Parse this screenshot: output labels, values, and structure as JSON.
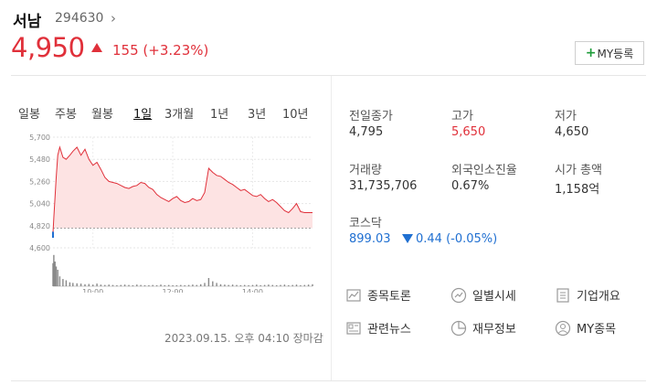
{
  "stock": {
    "name": "서남",
    "code": "294630",
    "price": "4,950",
    "change_amount": "155",
    "change_percent": "(+3.23%)",
    "my_button": "MY등록",
    "up_color": "#e0303a",
    "down_color": "#1f6fd1"
  },
  "periods": [
    "일봉",
    "주봉",
    "월봉",
    "1일",
    "3개월",
    "1년",
    "3년",
    "10년"
  ],
  "active_period": "1일",
  "timestamp": "2023.09.15. 오후 04:10 장마감",
  "stats": {
    "prev_close_label": "전일종가",
    "prev_close": "4,795",
    "high_label": "고가",
    "high": "5,650",
    "low_label": "저가",
    "low": "4,650",
    "volume_label": "거래량",
    "volume": "31,735,706",
    "foreign_label": "외국인소진율",
    "foreign": "0.67%",
    "mcap_label": "시가 총액",
    "mcap": "1,158억",
    "index_label": "코스닥",
    "index_value": "899.03",
    "index_change": "0.44 (-0.05%)"
  },
  "links": [
    {
      "label": "종목토론",
      "icon": "chart-board-icon"
    },
    {
      "label": "일별시세",
      "icon": "trend-icon"
    },
    {
      "label": "기업개요",
      "icon": "document-icon"
    },
    {
      "label": "관련뉴스",
      "icon": "news-icon"
    },
    {
      "label": "재무정보",
      "icon": "pie-chart-icon"
    },
    {
      "label": "MY종목",
      "icon": "person-icon"
    }
  ],
  "chart_data": {
    "type": "line",
    "y_tick_labels": [
      "5,700",
      "5,480",
      "5,260",
      "5,040",
      "4,820",
      "4,600"
    ],
    "x_tick_labels": [
      "10:00",
      "12:00",
      "14:00"
    ],
    "prev_close": 4795,
    "ylim": [
      4600,
      5700
    ],
    "grid": true,
    "x_hours": [
      9.0,
      9.02,
      9.05,
      9.08,
      9.12,
      9.17,
      9.25,
      9.33,
      9.42,
      9.5,
      9.6,
      9.7,
      9.8,
      9.9,
      10.0,
      10.1,
      10.2,
      10.3,
      10.4,
      10.5,
      10.6,
      10.7,
      10.8,
      10.9,
      11.0,
      11.1,
      11.2,
      11.3,
      11.4,
      11.5,
      11.6,
      11.7,
      11.8,
      11.9,
      12.0,
      12.1,
      12.2,
      12.3,
      12.4,
      12.5,
      12.6,
      12.7,
      12.8,
      12.9,
      13.0,
      13.1,
      13.2,
      13.3,
      13.4,
      13.5,
      13.6,
      13.7,
      13.8,
      13.9,
      14.0,
      14.1,
      14.2,
      14.3,
      14.4,
      14.5,
      14.6,
      14.7,
      14.8,
      14.9,
      15.0,
      15.1,
      15.2,
      15.3,
      15.4,
      15.5
    ],
    "prices": [
      4750,
      4900,
      5100,
      5300,
      5520,
      5600,
      5500,
      5480,
      5520,
      5560,
      5600,
      5520,
      5580,
      5480,
      5420,
      5450,
      5380,
      5300,
      5260,
      5250,
      5240,
      5220,
      5200,
      5190,
      5210,
      5220,
      5250,
      5240,
      5200,
      5180,
      5130,
      5100,
      5080,
      5060,
      5090,
      5110,
      5070,
      5050,
      5060,
      5090,
      5070,
      5080,
      5150,
      5390,
      5350,
      5320,
      5310,
      5280,
      5250,
      5230,
      5200,
      5170,
      5180,
      5150,
      5120,
      5110,
      5130,
      5090,
      5060,
      5080,
      5050,
      5010,
      4970,
      4950,
      4990,
      5040,
      4960,
      4950,
      4950,
      4950
    ],
    "volume_relative": [
      0.7,
      0.95,
      0.75,
      0.6,
      0.5,
      0.3,
      0.22,
      0.18,
      0.12,
      0.1,
      0.09,
      0.08,
      0.06,
      0.07,
      0.05,
      0.08,
      0.05,
      0.04,
      0.05,
      0.04,
      0.03,
      0.04,
      0.05,
      0.04,
      0.03,
      0.05,
      0.04,
      0.03,
      0.03,
      0.04,
      0.03,
      0.05,
      0.03,
      0.04,
      0.03,
      0.03,
      0.04,
      0.03,
      0.04,
      0.05,
      0.04,
      0.06,
      0.1,
      0.25,
      0.15,
      0.1,
      0.06,
      0.05,
      0.04,
      0.05,
      0.04,
      0.03,
      0.04,
      0.03,
      0.04,
      0.05,
      0.03,
      0.04,
      0.05,
      0.04,
      0.03,
      0.04,
      0.05,
      0.03,
      0.04,
      0.05,
      0.03,
      0.04,
      0.05,
      0.06
    ]
  }
}
